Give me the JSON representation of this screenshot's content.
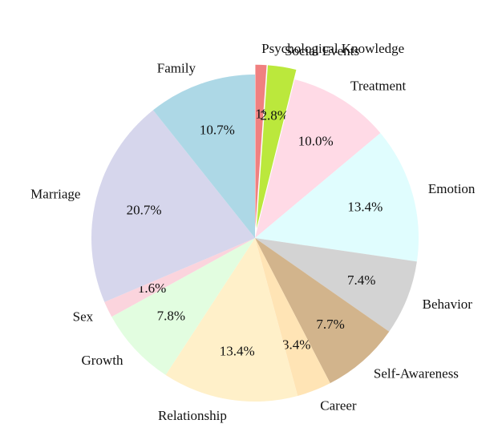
{
  "chart_data": {
    "type": "pie",
    "title": "",
    "start_angle_deg": 90,
    "direction": "clockwise",
    "slices": [
      {
        "label": "Psychological Knowledge",
        "value": 1.1,
        "pct_label": "1.1%",
        "color": "#f08080",
        "exploded": true
      },
      {
        "label": "Social Events",
        "value": 2.8,
        "pct_label": "2.8%",
        "color": "#bbe83c",
        "exploded": true
      },
      {
        "label": "Treatment",
        "value": 10.0,
        "pct_label": "10.0%",
        "color": "#ffdae6",
        "exploded": false
      },
      {
        "label": "Emotion",
        "value": 13.4,
        "pct_label": "13.4%",
        "color": "#e0fdfe",
        "exploded": false
      },
      {
        "label": "Behavior",
        "value": 7.4,
        "pct_label": "7.4%",
        "color": "#d3d3d3",
        "exploded": false
      },
      {
        "label": "Self-Awareness",
        "value": 7.7,
        "pct_label": "7.7%",
        "color": "#d2b48c",
        "exploded": false
      },
      {
        "label": "Career",
        "value": 3.4,
        "pct_label": "3.4%",
        "color": "#ffe4b5",
        "exploded": false
      },
      {
        "label": "Relationship",
        "value": 13.4,
        "pct_label": "13.4%",
        "color": "#fff0c9",
        "exploded": false
      },
      {
        "label": "Growth",
        "value": 7.8,
        "pct_label": "7.8%",
        "color": "#e2fde0",
        "exploded": false
      },
      {
        "label": "Sex",
        "value": 1.6,
        "pct_label": "1.6%",
        "color": "#fbd4dd",
        "exploded": false
      },
      {
        "label": "Marriage",
        "value": 20.7,
        "pct_label": "20.7%",
        "color": "#d6d6ec",
        "exploded": false
      },
      {
        "label": "Family",
        "value": 10.7,
        "pct_label": "10.7%",
        "color": "#add8e6",
        "exploded": false
      }
    ]
  }
}
